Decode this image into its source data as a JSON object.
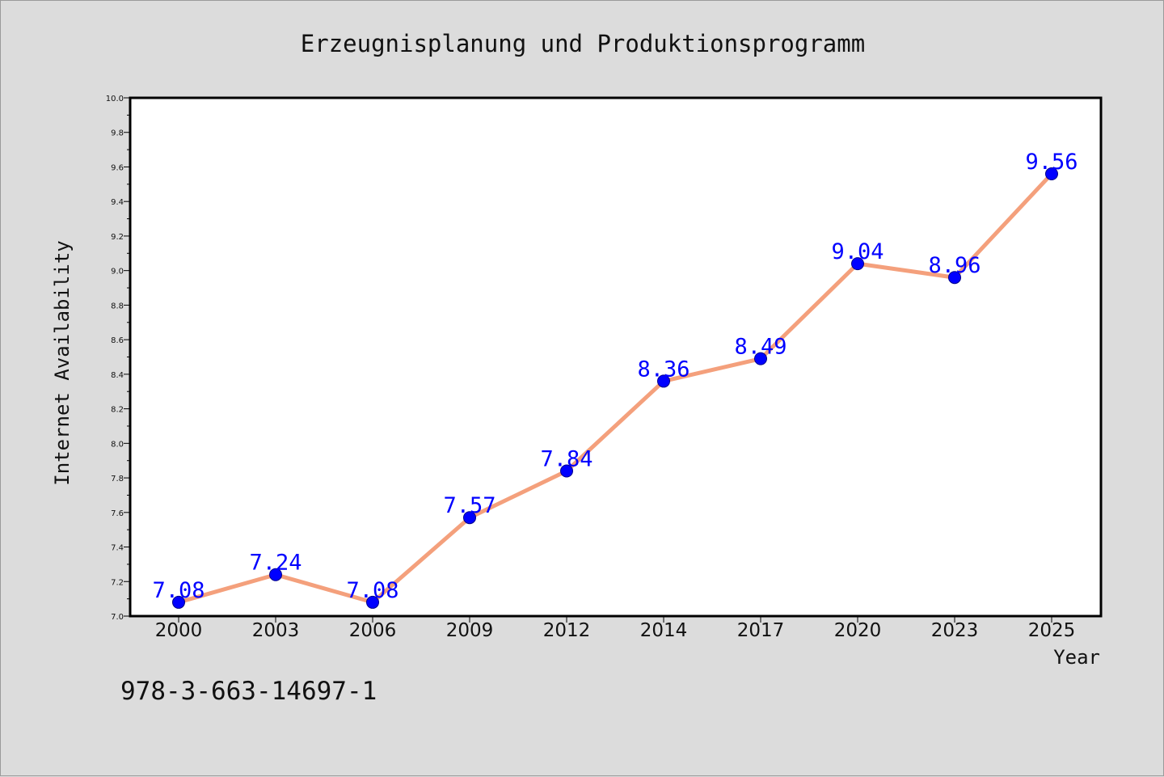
{
  "chart_data": {
    "type": "line",
    "title": "Erzeugnisplanung und Produktionsprogramm",
    "xlabel": "Year",
    "ylabel": "Internet Availability",
    "categories": [
      "2000",
      "2003",
      "2006",
      "2009",
      "2012",
      "2014",
      "2017",
      "2020",
      "2023",
      "2025"
    ],
    "series": [
      {
        "values": [
          7.08,
          7.24,
          7.08,
          7.57,
          7.84,
          8.36,
          8.49,
          9.04,
          8.96,
          9.56
        ],
        "data_labels": [
          "7.08",
          "7.24",
          "7.08",
          "7.57",
          "7.84",
          "8.36",
          "8.49",
          "9.04",
          "8.96",
          "9.56"
        ],
        "line_color": "#f4a07c",
        "marker_color": "#0000ff"
      }
    ],
    "ylim": [
      7.0,
      10.0
    ],
    "y_ticks": [
      "7.0",
      "7.2",
      "7.4",
      "7.6",
      "7.8",
      "8.0",
      "8.2",
      "8.4",
      "8.6",
      "8.8",
      "9.0",
      "9.2",
      "9.4",
      "9.6",
      "9.8",
      "10.0"
    ],
    "grid": false,
    "legend": "none"
  },
  "footer": {
    "isbn": "978-3-663-14697-1"
  },
  "colors": {
    "background": "#dcdcdc",
    "plot_background": "#ffffff",
    "axis": "#000000",
    "line": "#f4a07c",
    "marker": "#0000ff",
    "data_label": "#0000ff"
  }
}
